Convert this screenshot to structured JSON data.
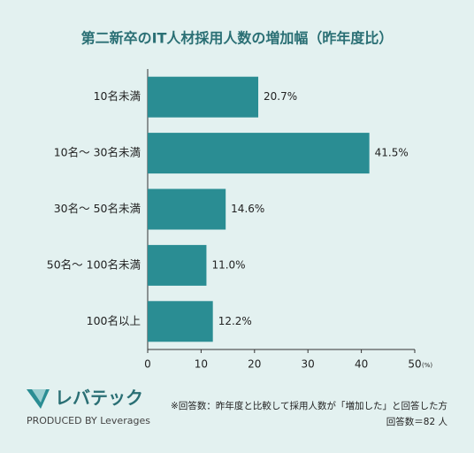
{
  "chart_data": {
    "type": "bar",
    "orientation": "horizontal",
    "title": "第二新卒のIT人材採用人数の増加幅（昨年度比）",
    "categories": [
      "10名未満",
      "10名〜 30名未満",
      "30名〜 50名未満",
      "50名〜 100名未満",
      "100名以上"
    ],
    "values": [
      20.7,
      41.5,
      14.6,
      11.0,
      12.2
    ],
    "value_labels": [
      "20.7%",
      "41.5%",
      "14.6%",
      "11.0%",
      "12.2%"
    ],
    "color": "#2a8d93",
    "xlim": [
      0,
      50
    ],
    "xticks": [
      0,
      10,
      20,
      30,
      40,
      50
    ],
    "x_unit": "(%)",
    "notes": [
      "※回答数：昨年度と比較して採用人数が「増加した」と回答した方",
      "回答数＝82 人"
    ]
  },
  "logo": {
    "name": "レバテック",
    "tagline": "PRODUCED BY Leverages"
  }
}
